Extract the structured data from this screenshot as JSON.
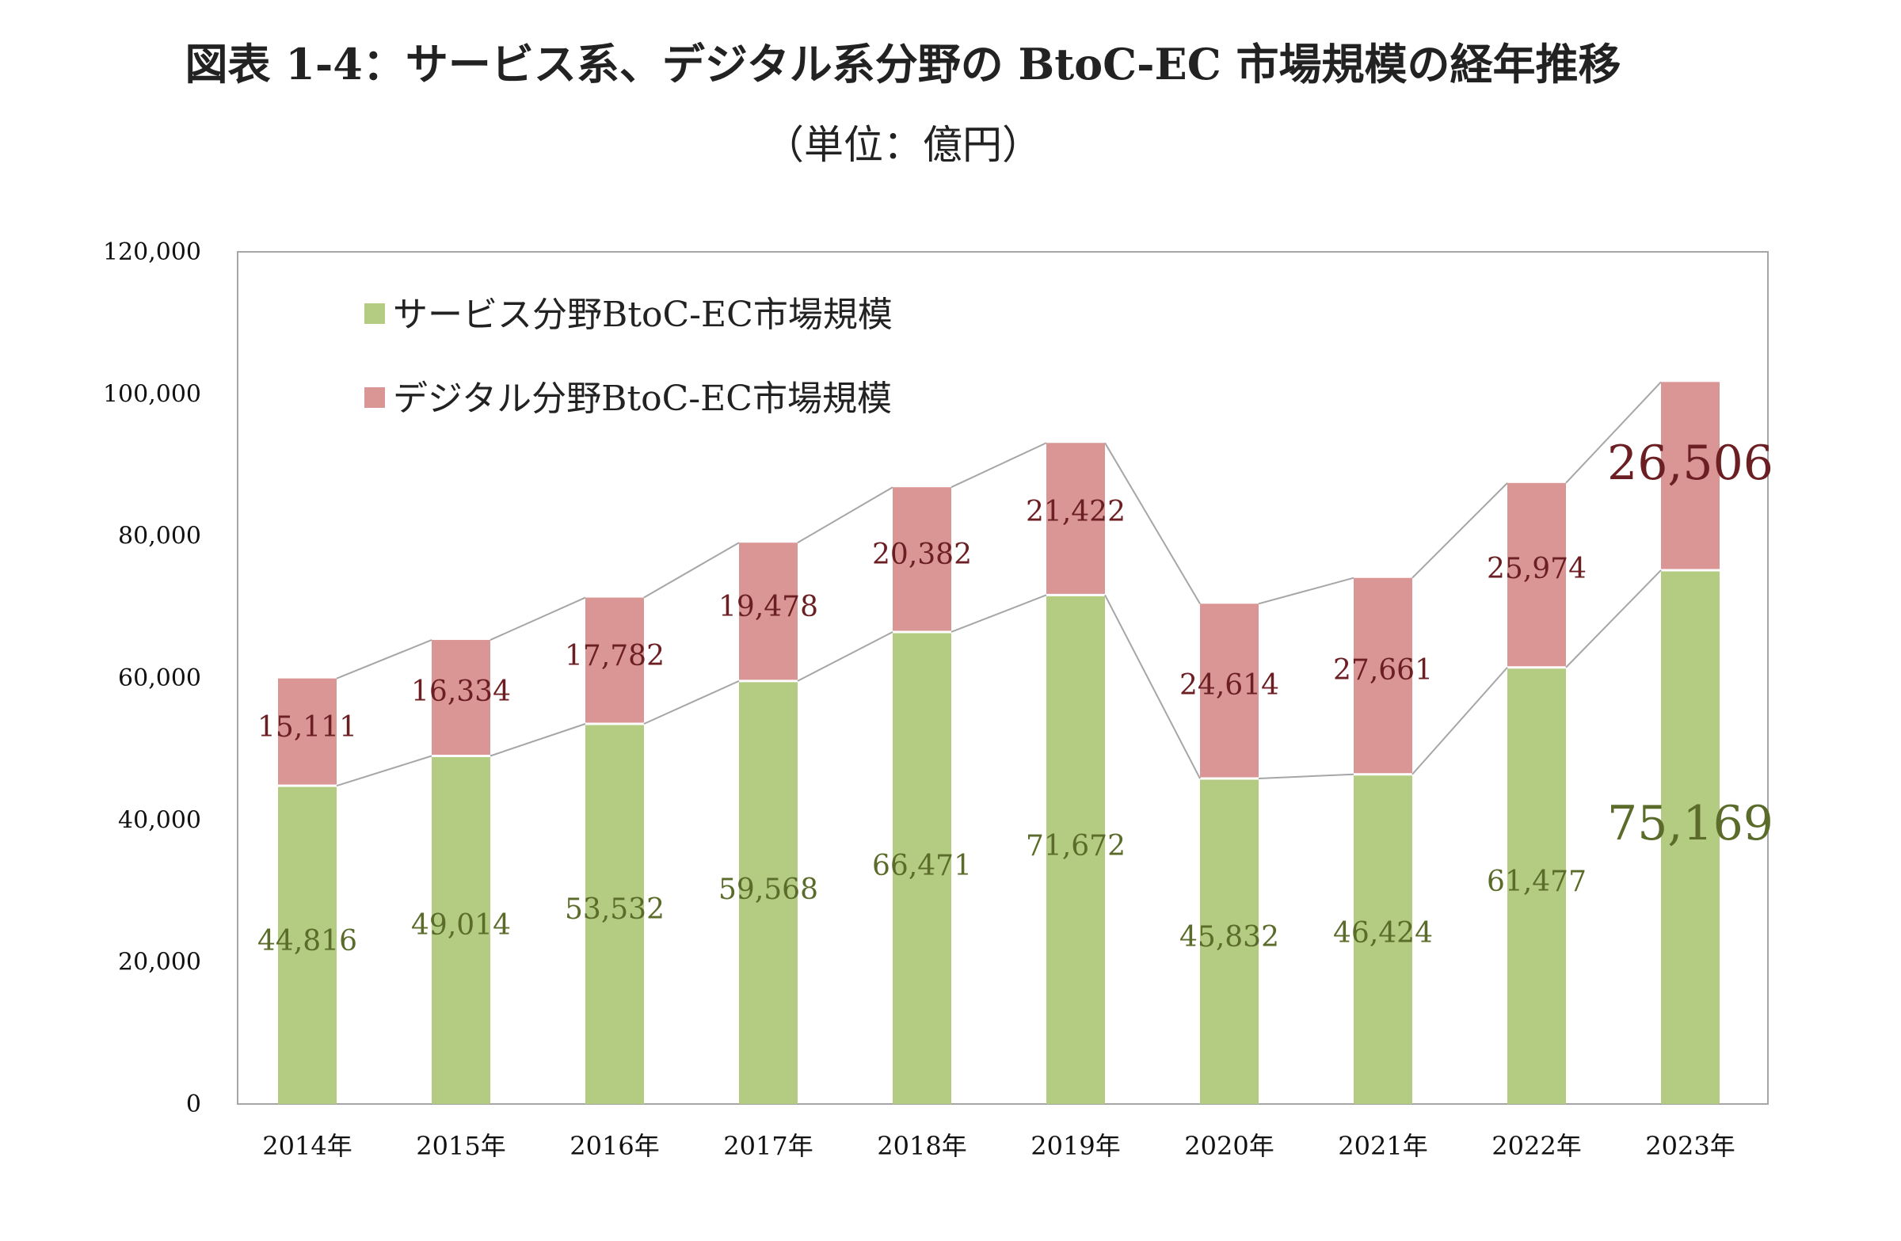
{
  "chart_data": {
    "type": "bar",
    "stacked": true,
    "title": "図表 1-4：サービス系、デジタル系分野の BtoC-EC 市場規模の経年推移",
    "subtitle": "（単位：億円）",
    "xlabel": "",
    "ylabel": "",
    "ylim": [
      0,
      120000
    ],
    "yticks": [
      0,
      20000,
      40000,
      60000,
      80000,
      100000,
      120000
    ],
    "ytick_labels": [
      "0",
      "20,000",
      "40,000",
      "60,000",
      "80,000",
      "100,000",
      "120,000"
    ],
    "categories": [
      "2014年",
      "2015年",
      "2016年",
      "2017年",
      "2018年",
      "2019年",
      "2020年",
      "2021年",
      "2022年",
      "2023年"
    ],
    "series": [
      {
        "name": "サービス分野BtoC-EC市場規模",
        "color": "#b3cc82",
        "label_color": "#5a6b2a",
        "values": [
          44816,
          49014,
          53532,
          59568,
          66471,
          71672,
          45832,
          46424,
          61477,
          75169
        ],
        "labels": [
          "44,816",
          "49,014",
          "53,532",
          "59,568",
          "66,471",
          "71,672",
          "45,832",
          "46,424",
          "61,477",
          "75,169"
        ]
      },
      {
        "name": "デジタル分野BtoC-EC市場規模",
        "color": "#d99694",
        "label_color": "#6b1f23",
        "values": [
          15111,
          16334,
          17782,
          19478,
          20382,
          21422,
          24614,
          27661,
          25974,
          26506
        ],
        "labels": [
          "15,111",
          "16,334",
          "17,782",
          "19,478",
          "20,382",
          "21,422",
          "24,614",
          "27,661",
          "25,974",
          "26,506"
        ]
      }
    ],
    "series_lines": true,
    "legend_position": "top-left",
    "grid": false
  }
}
